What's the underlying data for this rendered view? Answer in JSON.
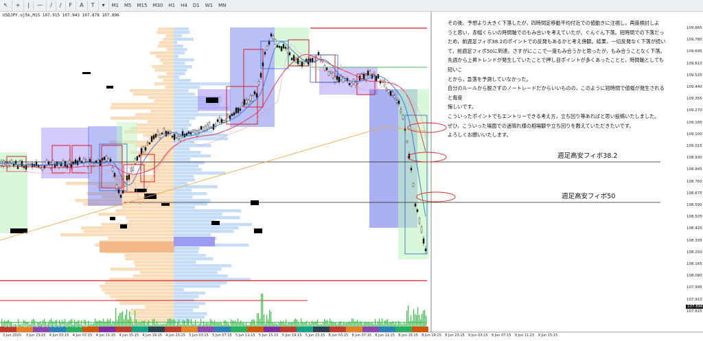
{
  "toolbar": {
    "timeframes": [
      "M1",
      "M5",
      "M15",
      "M30",
      "H1",
      "H4",
      "D1",
      "W1",
      "MN"
    ]
  },
  "symbol": {
    "label": "USDJPY.oj5k,M15  107.915 107.943 107.878 107.896"
  },
  "watermark": "SUKEPOCKE.BLOGSPOT.COM",
  "comment": {
    "lines": [
      "その後、予想より大きく下落したが，四時間足移動平均付近での値動きに注視し，再度検討しよ",
      "うと思い，赤幅くらいの時間軸でのもみ合いを考えていたが，ぐんぐん下落。短時間での下落だっ",
      "ため，前週足フィボ38.2のポイントでの反発もあるかと考え傍観。結果，一切反発なく下落が続い",
      "て，前週足フィボ50に到達。さすがにここで一度もみ合うかと思ったが，もみ合うことなく下落。",
      "先週から上昇トレンドが発生していたことで押し目ポイントが多くあったことと，時間軸としても短いこ",
      "とから，急落を予測していなかった。",
      "自分のルールから脱さずのノートレードだからいいものの，このように短時間で値幅が発生されると毎度",
      "悔しいです。",
      "こういったポイントでもエントリーできる考え方，立ち回り等あればと思い投稿いたしました。",
      "ぜひ，こういった場面での迷晴れ様の相場観や立ち回りを教えていただきたいです。",
      "よろしくお願いいたします。"
    ]
  },
  "annotations": {
    "fib382": "週足高安フィボ38.2",
    "fib50": "週足高安フィボ50"
  },
  "price_axis": {
    "labels": [
      "109.865",
      "109.780",
      "109.695",
      "109.610",
      "109.525",
      "109.440",
      "109.355",
      "109.270",
      "109.185",
      "109.100",
      "109.015",
      "108.930",
      "108.845",
      "108.760",
      "108.675",
      "108.590",
      "108.505",
      "108.420",
      "108.335",
      "108.250",
      "108.165",
      "108.080",
      "107.995",
      "107.910",
      "107.825"
    ],
    "current": "107.896"
  },
  "time_axis": {
    "labels": [
      "3 Jun 2020",
      "3 Jun 23:15",
      "4 Jun 03:15",
      "4 Jun 07:15",
      "4 Jun 11:15",
      "4 Jun 15:15",
      "4 Jun 19:15",
      "4 Jun 23:15",
      "5 Jun 03:15",
      "5 Jun 07:15",
      "5 Jun 11:15",
      "5 Jun 15:15",
      "5 Jun 19:15",
      "5 Jun 23:15",
      "8 Jun 03:15",
      "8 Jun 07:15",
      "8 Jun 11:15",
      "8 Jun 15:15",
      "8 Jun 19:15",
      "8 Jun 23:15",
      "9 Jun 03:15",
      "9 Jun 07:15",
      "9 Jun 11:15",
      "9 Jun 15:15"
    ]
  },
  "colors": {
    "red_level": "#d81b1b",
    "black_level": "#222222",
    "ma_red": "#e02a4a",
    "ma_blue": "#2f6fd8",
    "ma_orange": "#f0a84a",
    "profile_orange": "#f9d6ac",
    "profile_blue": "#bfd9f7",
    "zone_purple": "#9d87f3",
    "zone_green": "#bff3bf"
  }
}
